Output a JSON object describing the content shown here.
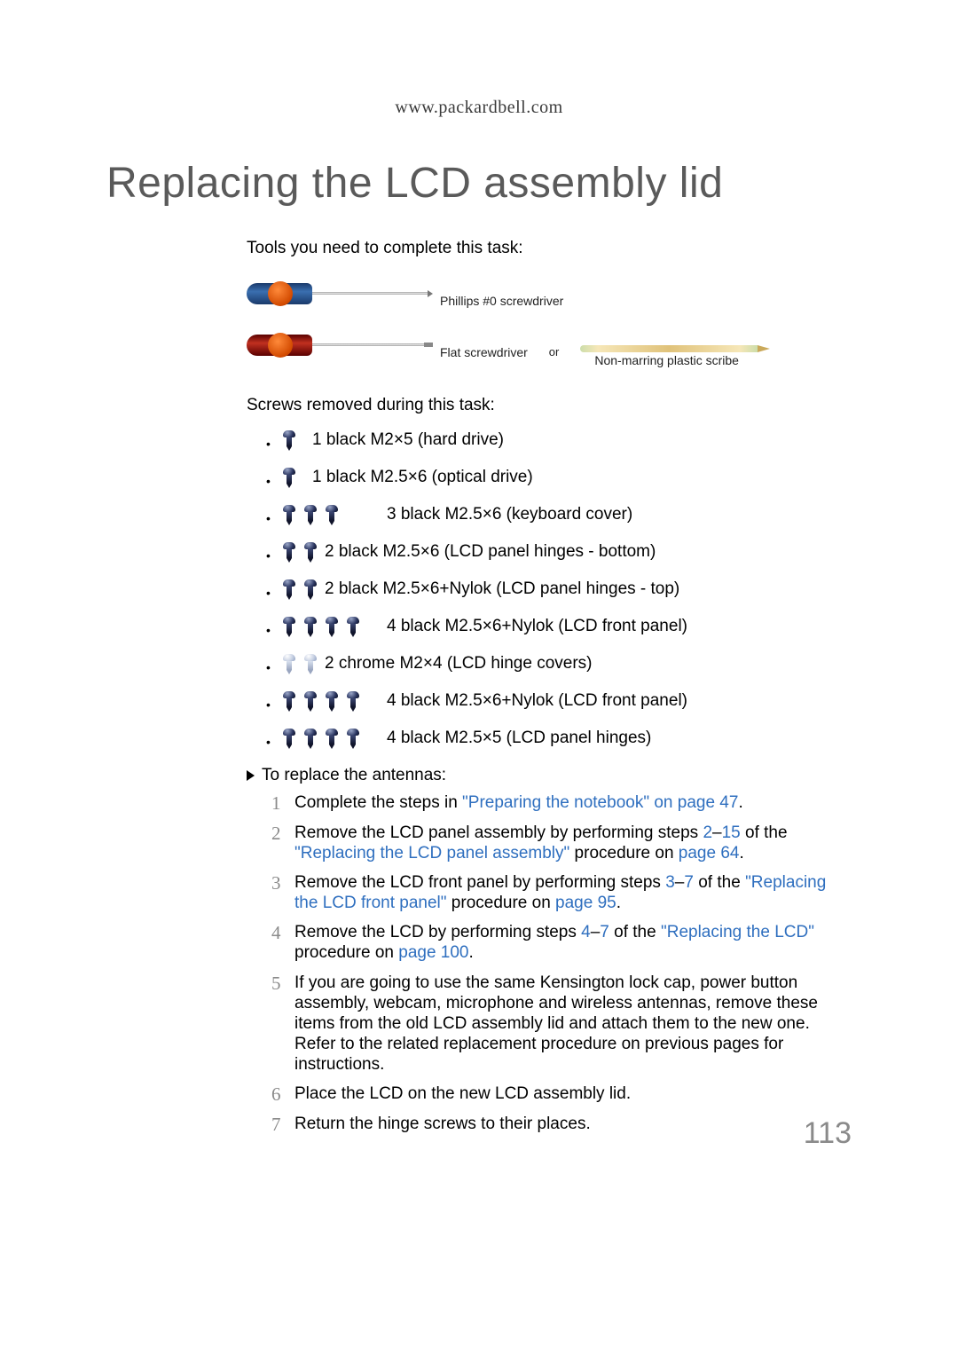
{
  "header": {
    "url": "www.packardbell.com"
  },
  "title": "Replacing the LCD assembly lid",
  "tools_intro": "Tools you need to complete this task:",
  "tools": {
    "phillips": "Phillips #0 screwdriver",
    "flat": "Flat screwdriver",
    "or": "or",
    "scribe": "Non-marring plastic scribe"
  },
  "screws_intro": "Screws removed during this task:",
  "colors": {
    "link": "#2f6fbf",
    "body_text": "#000000",
    "title_text": "#5a5a5a",
    "step_number": "#8a8a8a",
    "page_number": "#8a8a8a"
  },
  "screws": [
    {
      "count": 1,
      "color": "black",
      "text": "1 black M2×5 (hard drive)"
    },
    {
      "count": 1,
      "color": "black",
      "text": "1 black M2.5×6 (optical drive)"
    },
    {
      "count": 3,
      "color": "black",
      "text": "3 black M2.5×6 (keyboard cover)"
    },
    {
      "count": 2,
      "color": "black",
      "text": "2 black M2.5×6 (LCD panel hinges - bottom)"
    },
    {
      "count": 2,
      "color": "black",
      "text": "2 black M2.5×6+Nylok (LCD panel hinges - top)"
    },
    {
      "count": 4,
      "color": "black",
      "text": "4 black M2.5×6+Nylok (LCD front panel)"
    },
    {
      "count": 2,
      "color": "chrome",
      "text": "2 chrome M2×4 (LCD hinge covers)"
    },
    {
      "count": 4,
      "color": "black",
      "text": "4 black M2.5×6+Nylok (LCD front panel)"
    },
    {
      "count": 4,
      "color": "black",
      "text": "4 black M2.5×5 (LCD panel hinges)"
    }
  ],
  "proc_heading": "To replace the antennas:",
  "steps": {
    "s1": {
      "pre": "Complete the steps in ",
      "link1": "\"Preparing the notebook\" on page 47",
      "post": "."
    },
    "s2": {
      "pre": "Remove the LCD panel assembly by performing steps ",
      "link_a": "2",
      "dash1": "–",
      "link_b": "15",
      "mid": " of the ",
      "link_c": "\"Replacing the LCD panel assembly\"",
      "mid2": " procedure on ",
      "link_d": "page 64",
      "post": "."
    },
    "s3": {
      "pre": "Remove the LCD front panel by performing steps ",
      "link_a": "3",
      "dash1": "–",
      "link_b": "7",
      "mid": " of the ",
      "link_c": "\"Replacing the LCD front panel\"",
      "mid2": " procedure on ",
      "link_d": "page 95",
      "post": "."
    },
    "s4": {
      "pre": "Remove the LCD by performing steps ",
      "link_a": "4",
      "dash1": "–",
      "link_b": "7",
      "mid": " of the ",
      "link_c": "\"Replacing the LCD\"",
      "mid2": " procedure on ",
      "link_d": "page 100",
      "post": "."
    },
    "s5": "If you are going to use the same Kensington lock cap, power button assembly, webcam, microphone and wireless antennas, remove these items from the old LCD assembly lid and attach them to the new one. Refer to the related replacement procedure on previous pages for instructions.",
    "s6": "Place the LCD on the new LCD assembly lid.",
    "s7": "Return the hinge screws to their places."
  },
  "page_number": "113"
}
